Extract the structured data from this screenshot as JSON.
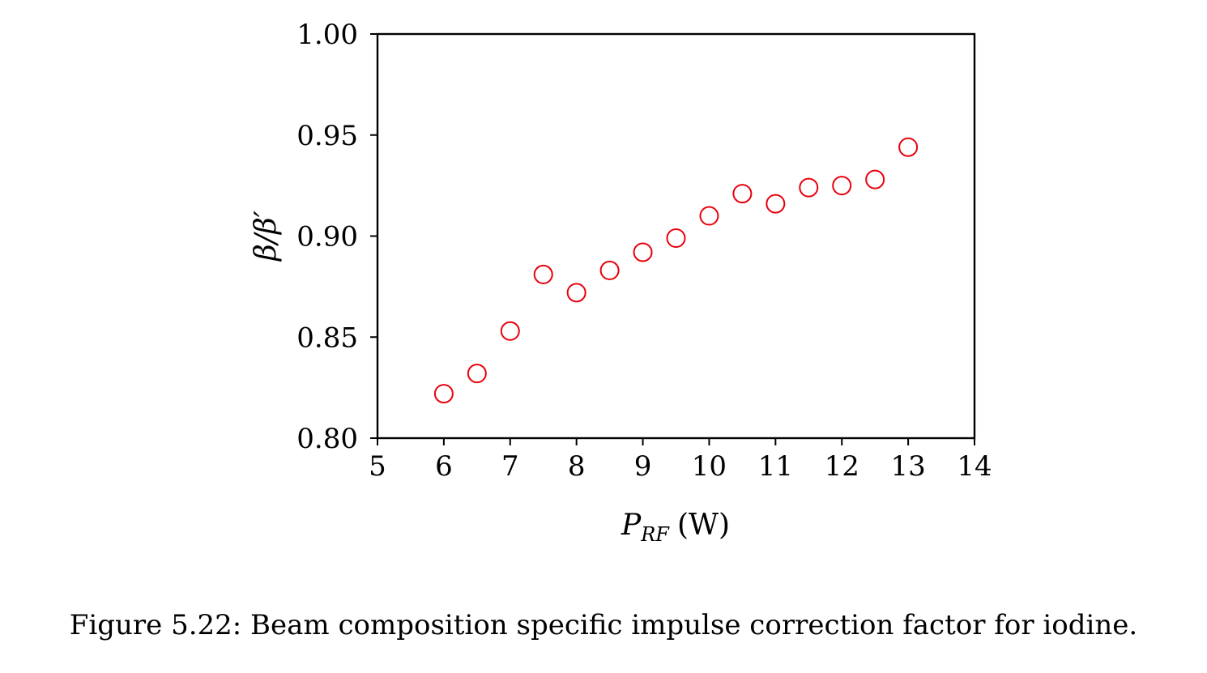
{
  "chart_data": {
    "type": "scatter",
    "xlabel": "P_RF (W)",
    "xlabel_main": "P",
    "xlabel_sub": "RF",
    "xlabel_unit": "(W)",
    "ylabel": "β/β′",
    "xlim": [
      5,
      14
    ],
    "ylim": [
      0.8,
      1.0
    ],
    "xticks": [
      "5",
      "6",
      "7",
      "8",
      "9",
      "10",
      "11",
      "12",
      "13",
      "14"
    ],
    "yticks": [
      "0.80",
      "0.85",
      "0.90",
      "0.95",
      "1.00"
    ],
    "grid": false,
    "marker_color": "#e8000b",
    "series": [
      {
        "x": [
          6,
          6.5,
          7,
          7.5,
          8,
          8.5,
          9,
          9.5,
          10,
          10.5,
          11,
          11.5,
          12,
          12.5,
          13
        ],
        "y": [
          0.822,
          0.832,
          0.853,
          0.881,
          0.872,
          0.883,
          0.892,
          0.899,
          0.91,
          0.921,
          0.916,
          0.924,
          0.925,
          0.928,
          0.944
        ]
      }
    ]
  },
  "caption": "Figure 5.22: Beam composition specific impulse correction factor for iodine."
}
